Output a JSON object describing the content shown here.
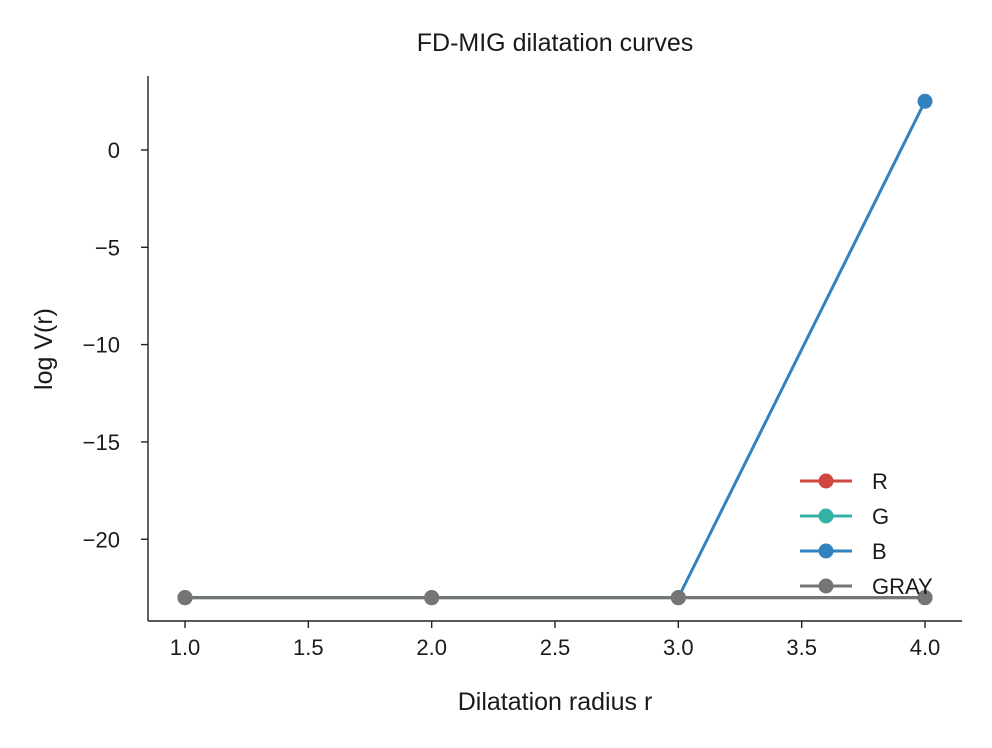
{
  "chart_data": {
    "type": "line",
    "title": "FD-MIG dilatation curves",
    "xlabel": "Dilatation radius r",
    "ylabel": "log V(r)",
    "x": [
      1.0,
      2.0,
      3.0,
      4.0
    ],
    "xlim": [
      0.85,
      4.15
    ],
    "ylim": [
      -24.2,
      3.8
    ],
    "xticks": [
      1.0,
      1.5,
      2.0,
      2.5,
      3.0,
      3.5,
      4.0
    ],
    "xtick_labels": [
      "1.0",
      "1.5",
      "2.0",
      "2.5",
      "3.0",
      "3.5",
      "4.0"
    ],
    "yticks": [
      0,
      -5,
      -10,
      -15,
      -20
    ],
    "ytick_labels": [
      "0",
      "−5",
      "−10",
      "−15",
      "−20"
    ],
    "grid": false,
    "legend_position": "lower-right",
    "series": [
      {
        "name": "R",
        "color": "#d0473e",
        "values": [
          -23.0,
          -23.0,
          -23.0,
          -23.0
        ]
      },
      {
        "name": "G",
        "color": "#35b2a5",
        "values": [
          -23.0,
          -23.0,
          -23.0,
          -23.0
        ]
      },
      {
        "name": "B",
        "color": "#3282bf",
        "values": [
          -23.0,
          -23.0,
          -23.0,
          2.5
        ]
      },
      {
        "name": "GRAY",
        "color": "#757575",
        "values": [
          -23.0,
          -23.0,
          -23.0,
          -23.0
        ]
      }
    ]
  }
}
